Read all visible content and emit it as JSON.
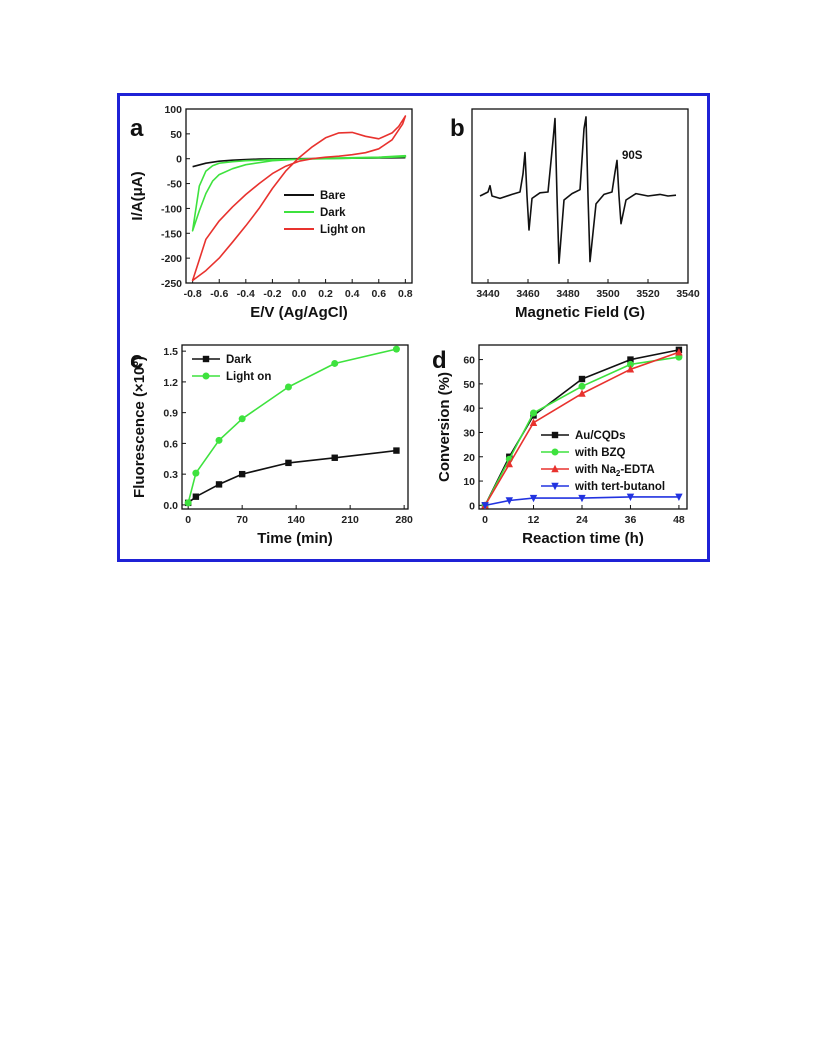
{
  "figure": {
    "border_color": "#1f22d6"
  },
  "chart_data": [
    {
      "id": "a",
      "type": "line",
      "panel_label": "a",
      "xlabel": "E/V (Ag/AgCl)",
      "ylabel": "I/A(μA)",
      "xlim": [
        -0.85,
        0.85
      ],
      "ylim": [
        -250,
        100
      ],
      "xticks": [
        -0.8,
        -0.6,
        -0.4,
        -0.2,
        0.0,
        0.2,
        0.4,
        0.6,
        0.8
      ],
      "xtick_labels": [
        "-0.8",
        "-0.6",
        "-0.4",
        "-0.2",
        "0.0",
        "0.2",
        "0.4",
        "0.6",
        "0.8"
      ],
      "yticks": [
        -250,
        -200,
        -150,
        -100,
        -50,
        0,
        50,
        100
      ],
      "ytick_labels": [
        "-250",
        "-200",
        "-150",
        "-100",
        "-50",
        "0",
        "50",
        "100"
      ],
      "legend": "middle-right",
      "series": [
        {
          "name": "Bare",
          "color": "#111111",
          "closed": false,
          "x": [
            -0.8,
            -0.7,
            -0.6,
            -0.5,
            -0.4,
            -0.3,
            -0.2,
            0.0,
            0.2,
            0.4,
            0.6,
            0.8
          ],
          "y": [
            -16,
            -9,
            -5,
            -3,
            -1.5,
            -0.8,
            -0.3,
            0,
            0.5,
            1,
            1.5,
            2
          ]
        },
        {
          "name": "Dark",
          "color": "#3ee23e",
          "closed": true,
          "x": [
            -0.8,
            -0.75,
            -0.7,
            -0.65,
            -0.6,
            -0.5,
            -0.4,
            -0.2,
            0.0,
            0.2,
            0.4,
            0.6,
            0.8,
            0.8,
            0.6,
            0.4,
            0.2,
            0.0,
            -0.2,
            -0.4,
            -0.5,
            -0.6,
            -0.65,
            -0.7,
            -0.75,
            -0.8
          ],
          "y": [
            -145,
            -105,
            -70,
            -45,
            -32,
            -20,
            -12,
            -4,
            -1,
            1,
            2,
            3,
            6,
            4,
            2,
            1,
            0,
            -1,
            -2,
            -4,
            -6,
            -9,
            -14,
            -25,
            -55,
            -145
          ]
        },
        {
          "name": "Light on",
          "color": "#e8322e",
          "closed": true,
          "x": [
            -0.8,
            -0.7,
            -0.6,
            -0.5,
            -0.4,
            -0.3,
            -0.2,
            -0.1,
            0.0,
            0.1,
            0.2,
            0.3,
            0.4,
            0.5,
            0.6,
            0.7,
            0.75,
            0.8,
            0.78,
            0.7,
            0.6,
            0.5,
            0.4,
            0.3,
            0.2,
            0.1,
            0.0,
            -0.1,
            -0.2,
            -0.3,
            -0.4,
            -0.5,
            -0.6,
            -0.7,
            -0.8
          ],
          "y": [
            -245,
            -225,
            -200,
            -168,
            -135,
            -100,
            -60,
            -25,
            2,
            24,
            42,
            52,
            53,
            45,
            40,
            52,
            65,
            86,
            70,
            38,
            20,
            12,
            8,
            5,
            3,
            0,
            -5,
            -15,
            -30,
            -50,
            -72,
            -97,
            -125,
            -162,
            -245
          ]
        }
      ]
    },
    {
      "id": "b",
      "type": "line",
      "panel_label": "b",
      "annotation": "90S",
      "xlabel": "Magnetic Field (G)",
      "ylabel": "",
      "xlim": [
        3432,
        3540
      ],
      "xticks": [
        3440,
        3460,
        3480,
        3500,
        3520,
        3540
      ],
      "xtick_labels": [
        "3440",
        "3460",
        "3480",
        "3500",
        "3520",
        "3540"
      ],
      "ylim": [
        -1.1,
        1.1
      ],
      "y_axis_visible": false,
      "legend": "none",
      "series": [
        {
          "name": "",
          "color": "#111111",
          "x": [
            3436,
            3440,
            3441,
            3442,
            3446,
            3452,
            3456,
            3457.5,
            3458.5,
            3459.5,
            3460.5,
            3462,
            3466,
            3470,
            3472.5,
            3473.5,
            3474.5,
            3475.5,
            3478,
            3482,
            3486,
            3488,
            3489,
            3490,
            3491,
            3494,
            3498,
            3502,
            3503.5,
            3504.5,
            3505.5,
            3506.5,
            3509,
            3514,
            3520,
            3526,
            3530,
            3534
          ],
          "y": [
            0.0,
            0.05,
            0.13,
            0.0,
            -0.03,
            0.02,
            0.05,
            0.28,
            0.55,
            0.0,
            -0.43,
            -0.03,
            0.04,
            0.05,
            0.7,
            0.98,
            0.0,
            -0.85,
            -0.05,
            0.03,
            0.08,
            0.85,
            1.0,
            0.0,
            -0.83,
            -0.1,
            0.02,
            0.05,
            0.3,
            0.45,
            0.0,
            -0.35,
            -0.05,
            0.03,
            0.0,
            0.02,
            0.0,
            0.01
          ]
        }
      ]
    },
    {
      "id": "c",
      "type": "line",
      "panel_label": "c",
      "xlabel": "Time (min)",
      "ylabel": "Fluorescence (×10",
      "ylabel_exp": "6",
      "ylabel_close": ")",
      "xlim": [
        -8,
        285
      ],
      "ylim": [
        -0.04,
        1.56
      ],
      "xticks": [
        0,
        70,
        140,
        210,
        280
      ],
      "xtick_labels": [
        "0",
        "70",
        "140",
        "210",
        "280"
      ],
      "yticks": [
        0.0,
        0.3,
        0.6,
        0.9,
        1.2,
        1.5
      ],
      "ytick_labels": [
        "0.0",
        "0.3",
        "0.6",
        "0.9",
        "1.2",
        "1.5"
      ],
      "legend": "top-left",
      "series": [
        {
          "name": "Dark",
          "color": "#111111",
          "marker": "square",
          "x": [
            0,
            10,
            40,
            70,
            130,
            190,
            270
          ],
          "y": [
            0.02,
            0.08,
            0.2,
            0.3,
            0.41,
            0.46,
            0.53
          ]
        },
        {
          "name": "Light on",
          "color": "#3ee23e",
          "marker": "circle",
          "x": [
            0,
            10,
            40,
            70,
            130,
            190,
            270
          ],
          "y": [
            0.02,
            0.31,
            0.63,
            0.84,
            1.15,
            1.38,
            1.52
          ]
        }
      ]
    },
    {
      "id": "d",
      "type": "line",
      "panel_label": "d",
      "xlabel": "Reaction time (h)",
      "ylabel": "Conversion (%)",
      "xlim": [
        -1.5,
        50
      ],
      "ylim": [
        -1.5,
        66
      ],
      "xticks": [
        0,
        12,
        24,
        36,
        48
      ],
      "xtick_labels": [
        "0",
        "12",
        "24",
        "36",
        "48"
      ],
      "yticks": [
        0,
        10,
        20,
        30,
        40,
        50,
        60
      ],
      "ytick_labels": [
        "0",
        "10",
        "20",
        "30",
        "40",
        "50",
        "60"
      ],
      "legend": "bottom-right",
      "series": [
        {
          "name": "Au/CQDs",
          "color": "#111111",
          "marker": "square",
          "x": [
            0,
            6,
            12,
            24,
            36,
            48
          ],
          "y": [
            0,
            20,
            37,
            52,
            60,
            64
          ]
        },
        {
          "name": "with BZQ",
          "color": "#3ee23e",
          "marker": "circle",
          "x": [
            0,
            6,
            12,
            24,
            36,
            48
          ],
          "y": [
            0,
            19,
            38,
            49,
            58,
            61
          ]
        },
        {
          "name": "with Na₂-EDTA",
          "name_main": "with Na",
          "name_sub": "2",
          "name_tail": "-EDTA",
          "color": "#e8322e",
          "marker": "triangle-up",
          "x": [
            0,
            6,
            12,
            24,
            36,
            48
          ],
          "y": [
            0,
            17,
            34,
            46,
            56,
            63
          ]
        },
        {
          "name": "with tert-butanol",
          "color": "#2233e0",
          "marker": "triangle-down",
          "x": [
            0,
            6,
            12,
            24,
            36,
            48
          ],
          "y": [
            0,
            2,
            3,
            3,
            3.5,
            3.5
          ]
        }
      ]
    }
  ]
}
